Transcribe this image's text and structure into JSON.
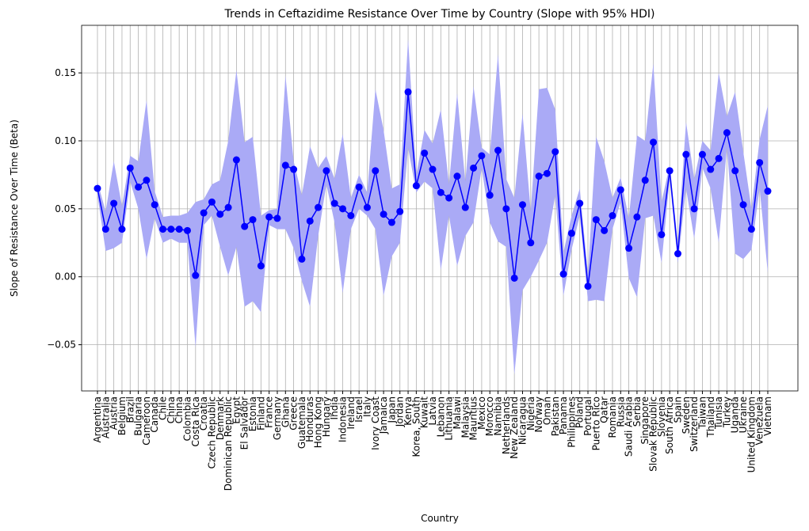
{
  "chart_data": {
    "type": "line",
    "title": "Trends in Ceftazidime Resistance Over Time by Country (Slope with 95% HDI)",
    "xlabel": "Country",
    "ylabel": "Slope of Resistance Over Time (Beta)",
    "categories": [
      "Argentina",
      "Australia",
      "Austria",
      "Belgium",
      "Brazil",
      "Bulgaria",
      "Cameroon",
      "Canada",
      "Chile",
      "China",
      "China",
      "Colombia",
      "Costa Rica",
      "Croatia",
      "Czech Republic",
      "Denmark",
      "Dominican Republic",
      "Egypt",
      "El Salvador",
      "Estonia",
      "Finland",
      "France",
      "Germany",
      "Ghana",
      "Greece",
      "Guatemala",
      "Honduras",
      "Hong Kong",
      "Hungary",
      "India",
      "Indonesia",
      "Ireland",
      "Israel",
      "Italy",
      "Ivory Coast",
      "Jamaica",
      "Japan",
      "Jordan",
      "Kenya",
      "Korea, South",
      "Kuwait",
      "Latvia",
      "Lebanon",
      "Lithuania",
      "Malawi",
      "Malaysia",
      "Mauritius",
      "Mexico",
      "Morocco",
      "Namibia",
      "Netherlands",
      "New Zealand",
      "Nicaragua",
      "Nigeria",
      "Norway",
      "Oman",
      "Pakistan",
      "Panama",
      "Philippines",
      "Poland",
      "Portugal",
      "Puerto Rico",
      "Qatar",
      "Romania",
      "Russia",
      "Saudi Arabia",
      "Serbia",
      "Singapore",
      "Slovak Republic",
      "Slovenia",
      "South Africa",
      "Spain",
      "Sweden",
      "Switzerland",
      "Taiwan",
      "Thailand",
      "Tunisia",
      "Turkey",
      "Uganda",
      "Ukraine",
      "United Kingdom",
      "Venezuela",
      "Vietnam"
    ],
    "series": [
      {
        "color": "#0000ff",
        "band_color": "#aaaaf6",
        "values": [
          0.065,
          0.035,
          0.054,
          0.035,
          0.08,
          0.066,
          0.071,
          0.053,
          0.035,
          0.035,
          0.035,
          0.034,
          0.001,
          0.047,
          0.055,
          0.046,
          0.051,
          0.086,
          0.037,
          0.042,
          0.008,
          0.044,
          0.043,
          0.082,
          0.079,
          0.013,
          0.041,
          0.051,
          0.078,
          0.054,
          0.05,
          0.045,
          0.066,
          0.051,
          0.078,
          0.046,
          0.04,
          0.048,
          0.136,
          0.067,
          0.091,
          0.079,
          0.062,
          0.058,
          0.074,
          0.051,
          0.08,
          0.089,
          0.06,
          0.093,
          0.05,
          -0.001,
          0.053,
          0.025,
          0.074,
          0.076,
          0.092,
          0.002,
          0.032,
          0.054,
          -0.007,
          0.042,
          0.034,
          0.045,
          0.064,
          0.021,
          0.044,
          0.071,
          0.099,
          0.031,
          0.078,
          0.017,
          0.09,
          0.05,
          0.09,
          0.079,
          0.087,
          0.106,
          0.078,
          0.053,
          0.035,
          0.084,
          0.063
        ],
        "lower": [
          0.06,
          0.019,
          0.021,
          0.025,
          0.07,
          0.05,
          0.013,
          0.043,
          0.025,
          0.028,
          0.025,
          0.025,
          -0.052,
          0.038,
          0.045,
          0.022,
          0.001,
          0.022,
          -0.022,
          -0.018,
          -0.026,
          0.038,
          0.035,
          0.035,
          0.021,
          -0.003,
          -0.022,
          0.03,
          0.068,
          0.04,
          -0.012,
          0.035,
          0.05,
          0.045,
          0.035,
          -0.014,
          0.015,
          0.025,
          0.095,
          0.062,
          0.07,
          0.065,
          0.005,
          0.045,
          0.008,
          0.03,
          0.04,
          0.08,
          0.04,
          0.026,
          0.022,
          -0.072,
          -0.01,
          0.0,
          0.012,
          0.025,
          0.06,
          -0.014,
          0.02,
          0.045,
          -0.018,
          -0.017,
          -0.018,
          0.035,
          0.055,
          -0.001,
          -0.015,
          0.043,
          0.045,
          0.01,
          0.072,
          0.01,
          0.065,
          0.028,
          0.08,
          0.065,
          0.025,
          0.095,
          0.017,
          0.013,
          0.02,
          0.065,
          0.003
        ],
        "upper": [
          0.07,
          0.048,
          0.085,
          0.052,
          0.089,
          0.085,
          0.13,
          0.063,
          0.044,
          0.045,
          0.045,
          0.047,
          0.055,
          0.057,
          0.068,
          0.071,
          0.1,
          0.152,
          0.099,
          0.103,
          0.045,
          0.049,
          0.05,
          0.148,
          0.085,
          0.06,
          0.096,
          0.08,
          0.089,
          0.072,
          0.105,
          0.058,
          0.075,
          0.062,
          0.138,
          0.108,
          0.065,
          0.068,
          0.175,
          0.075,
          0.108,
          0.098,
          0.123,
          0.068,
          0.135,
          0.07,
          0.14,
          0.095,
          0.09,
          0.164,
          0.072,
          0.058,
          0.12,
          0.048,
          0.138,
          0.139,
          0.123,
          0.018,
          0.045,
          0.065,
          0.002,
          0.103,
          0.085,
          0.058,
          0.073,
          0.043,
          0.104,
          0.1,
          0.157,
          0.055,
          0.082,
          0.025,
          0.114,
          0.072,
          0.1,
          0.093,
          0.15,
          0.118,
          0.136,
          0.092,
          0.05,
          0.101,
          0.126
        ]
      }
    ],
    "ylim": [
      -0.084,
      0.185
    ],
    "yticks": [
      {
        "value": -0.05,
        "label": "−0.05"
      },
      {
        "value": 0,
        "label": "0.00"
      },
      {
        "value": 0.05,
        "label": "0.05"
      },
      {
        "value": 0.1,
        "label": "0.10"
      },
      {
        "value": 0.15,
        "label": "0.15"
      }
    ],
    "grid": true
  }
}
